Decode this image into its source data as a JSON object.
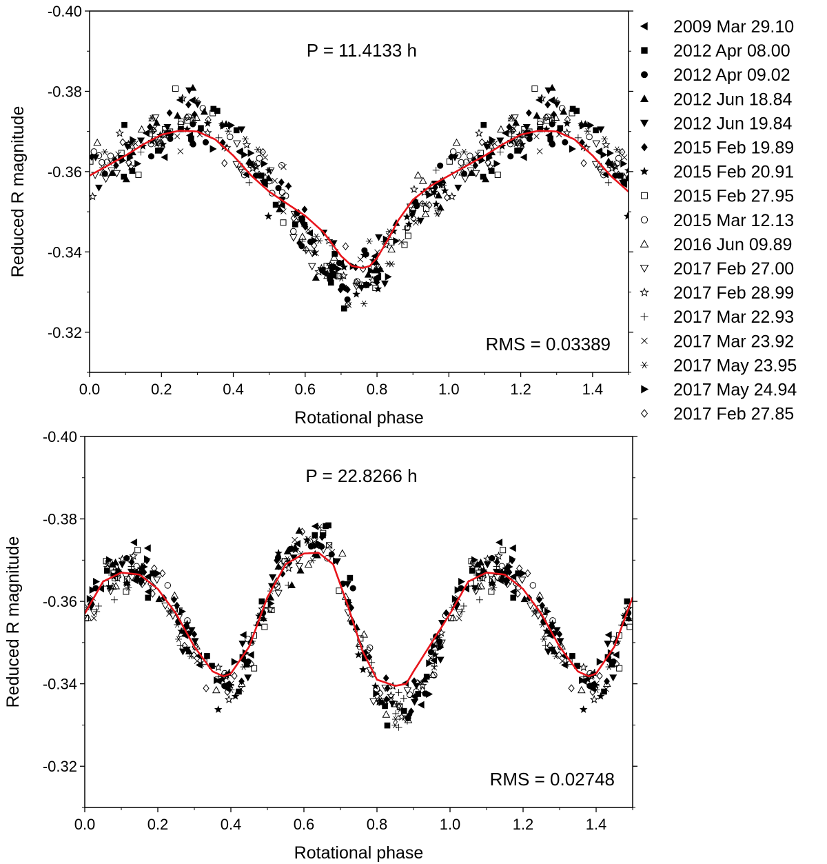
{
  "legend": {
    "placement": "right",
    "entries": [
      {
        "label": "2009 Mar 29.10",
        "marker": "triangle-left-filled"
      },
      {
        "label": "2012 Apr 08.00",
        "marker": "square-filled"
      },
      {
        "label": "2012 Apr 09.02",
        "marker": "circle-filled"
      },
      {
        "label": "2012 Jun 18.84",
        "marker": "triangle-up-filled"
      },
      {
        "label": "2012 Jun 19.84",
        "marker": "triangle-down-filled"
      },
      {
        "label": "2015 Feb 19.89",
        "marker": "diamond-filled"
      },
      {
        "label": "2015 Feb 20.91",
        "marker": "star-filled"
      },
      {
        "label": "2015 Feb 27.95",
        "marker": "square-open"
      },
      {
        "label": "2015 Mar 12.13",
        "marker": "circle-open"
      },
      {
        "label": "2016 Jun 09.89",
        "marker": "triangle-up-open"
      },
      {
        "label": "2017 Feb 27.00",
        "marker": "triangle-down-open"
      },
      {
        "label": "2017 Feb 28.99",
        "marker": "star-open"
      },
      {
        "label": "2017 Mar 22.93",
        "marker": "plus"
      },
      {
        "label": "2017 Mar 23.92",
        "marker": "cross"
      },
      {
        "label": "2017 May 23.95",
        "marker": "asterisk"
      },
      {
        "label": "2017 May 24.94",
        "marker": "triangle-right-filled"
      },
      {
        "label": "2017 Feb 27.85",
        "marker": "diamond-open"
      }
    ]
  },
  "chart_data": [
    {
      "type": "scatter",
      "annotation": "P = 11.4133 h",
      "rms": "RMS = 0.03389",
      "xlabel": "Rotational phase",
      "ylabel": "Reduced R magnitude",
      "xlim": [
        0.0,
        1.5
      ],
      "ylim": [
        -0.4,
        -0.31
      ],
      "y_inverted": true,
      "xticks": [
        "0.0",
        "0.2",
        "0.4",
        "0.6",
        "0.8",
        "1.0",
        "1.2",
        "1.4"
      ],
      "yticks": [
        "-0.40",
        "-0.38",
        "-0.36",
        "-0.34",
        "-0.32"
      ],
      "fit_color": "#e8141b",
      "fit_curve": {
        "x": [
          0.0,
          0.05,
          0.1,
          0.15,
          0.2,
          0.25,
          0.3,
          0.35,
          0.4,
          0.45,
          0.5,
          0.55,
          0.6,
          0.65,
          0.7,
          0.73,
          0.76,
          0.78,
          0.8,
          0.83,
          0.86,
          0.9,
          0.95,
          1.0
        ],
        "y": [
          -0.359,
          -0.3615,
          -0.364,
          -0.3668,
          -0.3692,
          -0.3702,
          -0.37,
          -0.368,
          -0.364,
          -0.359,
          -0.355,
          -0.352,
          -0.349,
          -0.345,
          -0.339,
          -0.3365,
          -0.336,
          -0.3365,
          -0.3385,
          -0.343,
          -0.348,
          -0.353,
          -0.3565,
          -0.359
        ]
      },
      "scatter_trend": {
        "x": [
          0.0,
          0.1,
          0.2,
          0.25,
          0.3,
          0.35,
          0.4,
          0.5,
          0.6,
          0.65,
          0.7,
          0.75,
          0.8,
          0.85,
          0.9,
          1.0
        ],
        "y": [
          -0.359,
          -0.364,
          -0.37,
          -0.373,
          -0.374,
          -0.372,
          -0.366,
          -0.357,
          -0.345,
          -0.338,
          -0.334,
          -0.332,
          -0.336,
          -0.342,
          -0.35,
          -0.359
        ]
      },
      "scatter_spread": 0.006,
      "points_per_session": 22
    },
    {
      "type": "scatter",
      "annotation": "P = 22.8266 h",
      "rms": "RMS = 0.02748",
      "xlabel": "Rotational phase",
      "ylabel": "Reduced R magnitude",
      "xlim": [
        0.0,
        1.5
      ],
      "ylim": [
        -0.4,
        -0.31
      ],
      "y_inverted": true,
      "xticks": [
        "0.0",
        "0.2",
        "0.4",
        "0.6",
        "0.8",
        "1.0",
        "1.2",
        "1.4"
      ],
      "yticks": [
        "-0.40",
        "-0.38",
        "-0.36",
        "-0.34",
        "-0.32"
      ],
      "fit_color": "#e8141b",
      "fit_curve": {
        "x": [
          0.0,
          0.05,
          0.1,
          0.15,
          0.2,
          0.25,
          0.3,
          0.35,
          0.38,
          0.4,
          0.45,
          0.5,
          0.55,
          0.6,
          0.64,
          0.68,
          0.72,
          0.76,
          0.8,
          0.85,
          0.88,
          0.9,
          0.95,
          1.0
        ],
        "y": [
          -0.357,
          -0.3648,
          -0.367,
          -0.3665,
          -0.363,
          -0.357,
          -0.349,
          -0.343,
          -0.3418,
          -0.3425,
          -0.349,
          -0.361,
          -0.369,
          -0.3716,
          -0.3718,
          -0.369,
          -0.359,
          -0.348,
          -0.341,
          -0.3395,
          -0.34,
          -0.343,
          -0.35,
          -0.357
        ]
      },
      "scatter_trend": {
        "x": [
          0.0,
          0.05,
          0.1,
          0.15,
          0.2,
          0.25,
          0.3,
          0.35,
          0.4,
          0.45,
          0.5,
          0.55,
          0.6,
          0.65,
          0.7,
          0.75,
          0.8,
          0.85,
          0.9,
          0.95,
          1.0
        ],
        "y": [
          -0.357,
          -0.365,
          -0.368,
          -0.368,
          -0.365,
          -0.358,
          -0.348,
          -0.34,
          -0.34,
          -0.348,
          -0.36,
          -0.369,
          -0.374,
          -0.375,
          -0.368,
          -0.352,
          -0.34,
          -0.334,
          -0.334,
          -0.345,
          -0.357
        ]
      },
      "scatter_spread": 0.005,
      "points_per_session": 22
    }
  ]
}
